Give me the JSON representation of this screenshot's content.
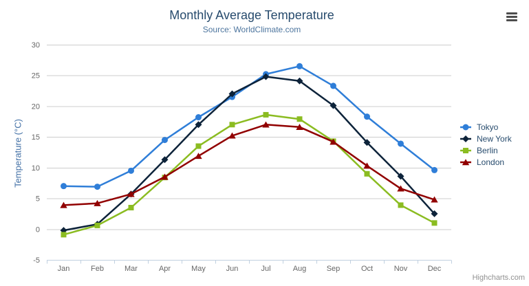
{
  "header": {
    "title": "Monthly Average Temperature",
    "subtitle": "Source: WorldClimate.com"
  },
  "credit": {
    "label": "Highcharts.com"
  },
  "colors": {
    "title_text": "#274b6d",
    "subtitle_text": "#4d759e",
    "axis_label_text": "#666666",
    "y_axis_title_text": "#4572a7",
    "grid_line": "#cccccc",
    "axis_line": "#c0d0e0",
    "legend_text": "#274b6d",
    "credit_text": "#909090",
    "menu_icon": "#4d4d4d"
  },
  "icons": {
    "export_menu": "hamburger-icon"
  },
  "chart_data": {
    "type": "line",
    "title": "Monthly Average Temperature",
    "subtitle": "Source: WorldClimate.com",
    "xlabel": "",
    "ylabel": "Temperature (°C)",
    "categories": [
      "Jan",
      "Feb",
      "Mar",
      "Apr",
      "May",
      "Jun",
      "Jul",
      "Aug",
      "Sep",
      "Oct",
      "Nov",
      "Dec"
    ],
    "ylim": [
      -5,
      30
    ],
    "ytick_step": 5,
    "ytick_labels": [
      "-5",
      "0",
      "5",
      "10",
      "15",
      "20",
      "25",
      "30"
    ],
    "grid": true,
    "legend_position": "right",
    "series": [
      {
        "name": "Tokyo",
        "color": "#2f7ed8",
        "marker": "circle",
        "values": [
          7.0,
          6.9,
          9.5,
          14.5,
          18.2,
          21.5,
          25.2,
          26.5,
          23.3,
          18.3,
          13.9,
          9.6
        ]
      },
      {
        "name": "New York",
        "color": "#0d233a",
        "marker": "diamond",
        "values": [
          -0.2,
          0.8,
          5.7,
          11.3,
          17.0,
          22.0,
          24.8,
          24.1,
          20.1,
          14.1,
          8.6,
          2.5
        ]
      },
      {
        "name": "Berlin",
        "color": "#8bbc21",
        "marker": "square",
        "values": [
          -0.9,
          0.6,
          3.5,
          8.4,
          13.5,
          17.0,
          18.6,
          17.9,
          14.3,
          9.0,
          3.9,
          1.0
        ]
      },
      {
        "name": "London",
        "color": "#910000",
        "marker": "triangle",
        "values": [
          3.9,
          4.2,
          5.7,
          8.5,
          11.9,
          15.2,
          17.0,
          16.6,
          14.2,
          10.3,
          6.6,
          4.8
        ]
      }
    ]
  }
}
